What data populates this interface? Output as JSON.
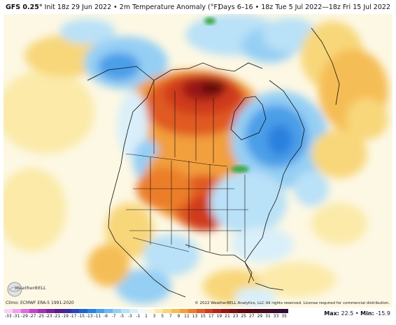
{
  "header": {
    "model": "GFS 0.25°",
    "init": "Init 18z 29 Jun 2022",
    "variable": "2m Temperature Anomaly (°F)",
    "valid": "Days 6–16 • 18z Tue 5 Jul 2022—18z Fri 15 Jul 2022"
  },
  "map": {
    "climo_note": "Climo: ECMWF ERA-5 1991-2020",
    "copyright": "© 2022 WeatherBELL Analytics, LLC All rights reserved. License required for commercial distribution.",
    "logo_text": "WeatherBELL"
  },
  "colorbar": {
    "labels": [
      "-33",
      "-31",
      "-29",
      "-27",
      "-25",
      "-23",
      "-21",
      "-19",
      "-17",
      "-15",
      "-13",
      "-11",
      "-9",
      "-7",
      "-5",
      "-3",
      "-1",
      "1",
      "3",
      "5",
      "7",
      "9",
      "11",
      "13",
      "15",
      "17",
      "19",
      "21",
      "23",
      "25",
      "27",
      "29",
      "31",
      "33",
      "35"
    ],
    "colors": [
      "#f9d2f3",
      "#f0a4ea",
      "#dc6fd8",
      "#c246c8",
      "#a132b0",
      "#7b2497",
      "#5a1d8a",
      "#3e2a9a",
      "#2a46b4",
      "#1e63cc",
      "#2b81de",
      "#4b9ee8",
      "#6fb8ef",
      "#95cff4",
      "#b9e1f7",
      "#d9eff9",
      "#f1f9fc",
      "#fdf8dc",
      "#fbeaa8",
      "#f8d77a",
      "#f5bd55",
      "#f29f3c",
      "#ec7e2c",
      "#e05a22",
      "#cf3b1c",
      "#b52617",
      "#981713",
      "#7c0e0f",
      "#630a0c",
      "#550a14",
      "#4a0b1c",
      "#400c24",
      "#360c2c",
      "#2c0c32"
    ]
  },
  "stats": {
    "max_label": "Max:",
    "max_value": "22.5",
    "sep": "•",
    "min_label": "Min:",
    "min_value": "-15.9"
  }
}
